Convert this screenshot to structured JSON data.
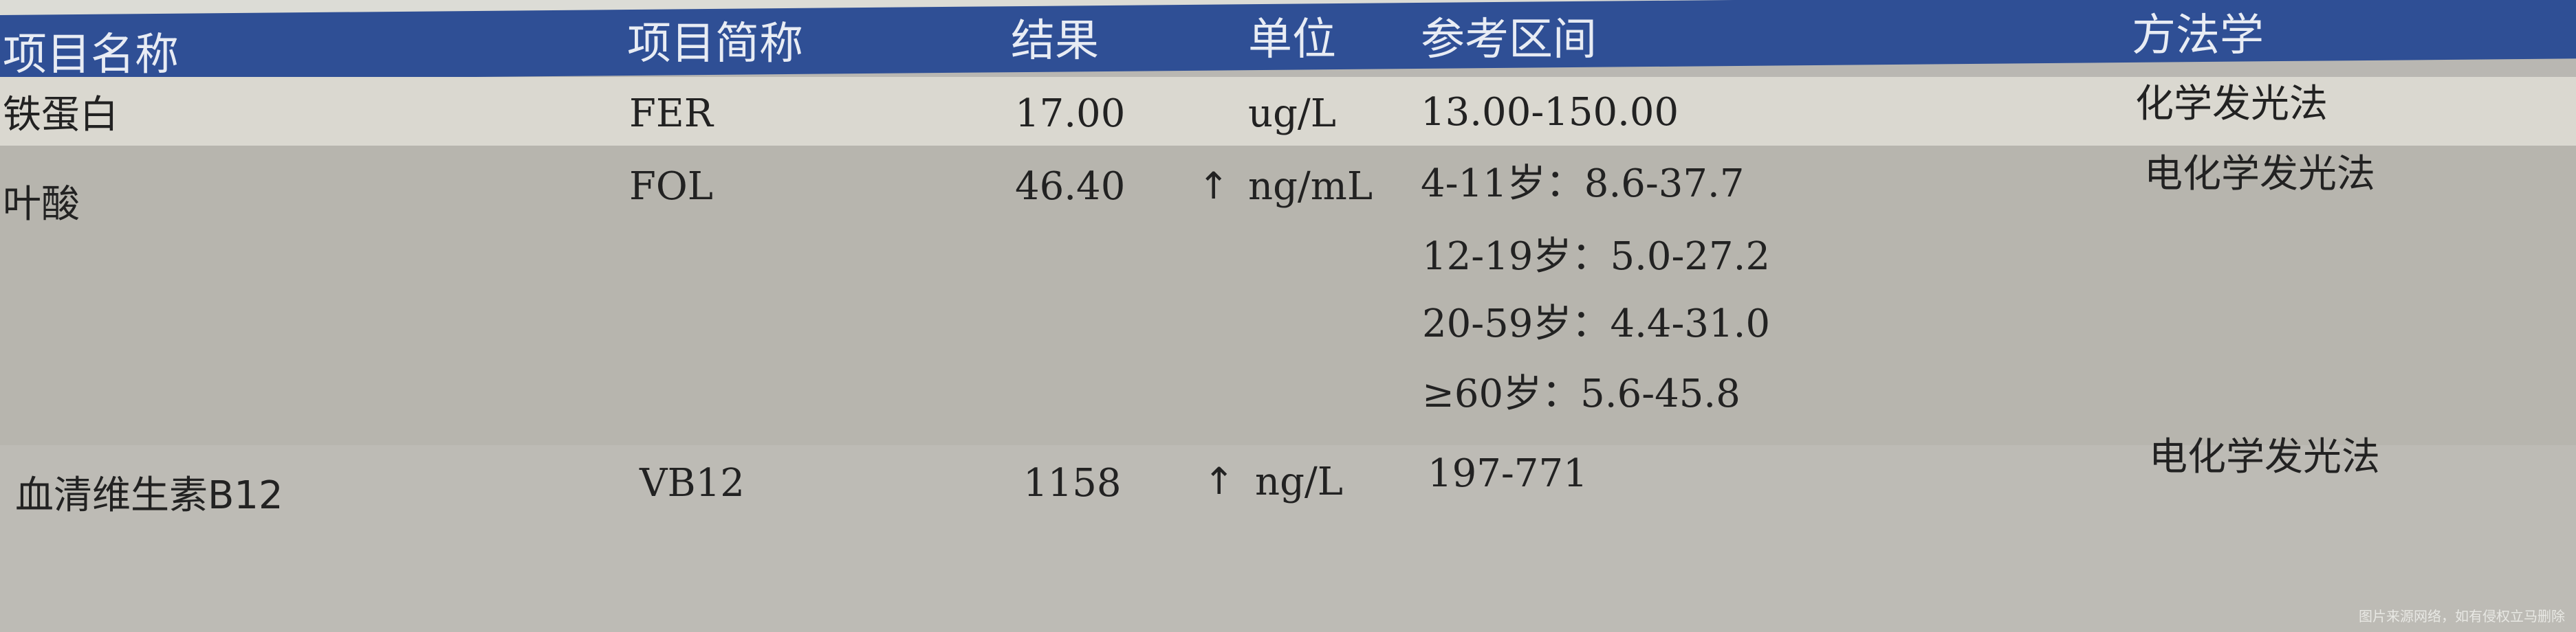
{
  "headers": [
    "项目名称",
    "项目简称",
    "结果",
    "单位",
    "参考区间",
    "方法学"
  ],
  "rows": [
    {
      "name": "铁蛋白",
      "abbr": "FER",
      "result": "17.00",
      "flag": "",
      "unit": "ug/L",
      "reference": [
        "13.00-150.00"
      ],
      "method": "化学发光法"
    },
    {
      "name": "叶酸",
      "abbr": "FOL",
      "result": "46.40",
      "flag": "↑",
      "unit": "ng/mL",
      "reference": [
        "4-11岁：8.6-37.7",
        "12-19岁：5.0-27.2",
        "20-59岁：4.4-31.0",
        "≥60岁：5.6-45.8"
      ],
      "method": "电化学发光法"
    },
    {
      "name": "血清维生素B12",
      "abbr": "VB12",
      "result": "1158",
      "flag": "↑",
      "unit": "ng/L",
      "reference": [
        "197-771"
      ],
      "method": "电化学发光法"
    }
  ],
  "watermark": "图片来源网络，如有侵权立马删除",
  "colors": {
    "header_bg": "#2f4f95",
    "header_text": "#e8ecf4",
    "row_light": "#dad8d0",
    "row_gray": "#b7b5ae"
  }
}
